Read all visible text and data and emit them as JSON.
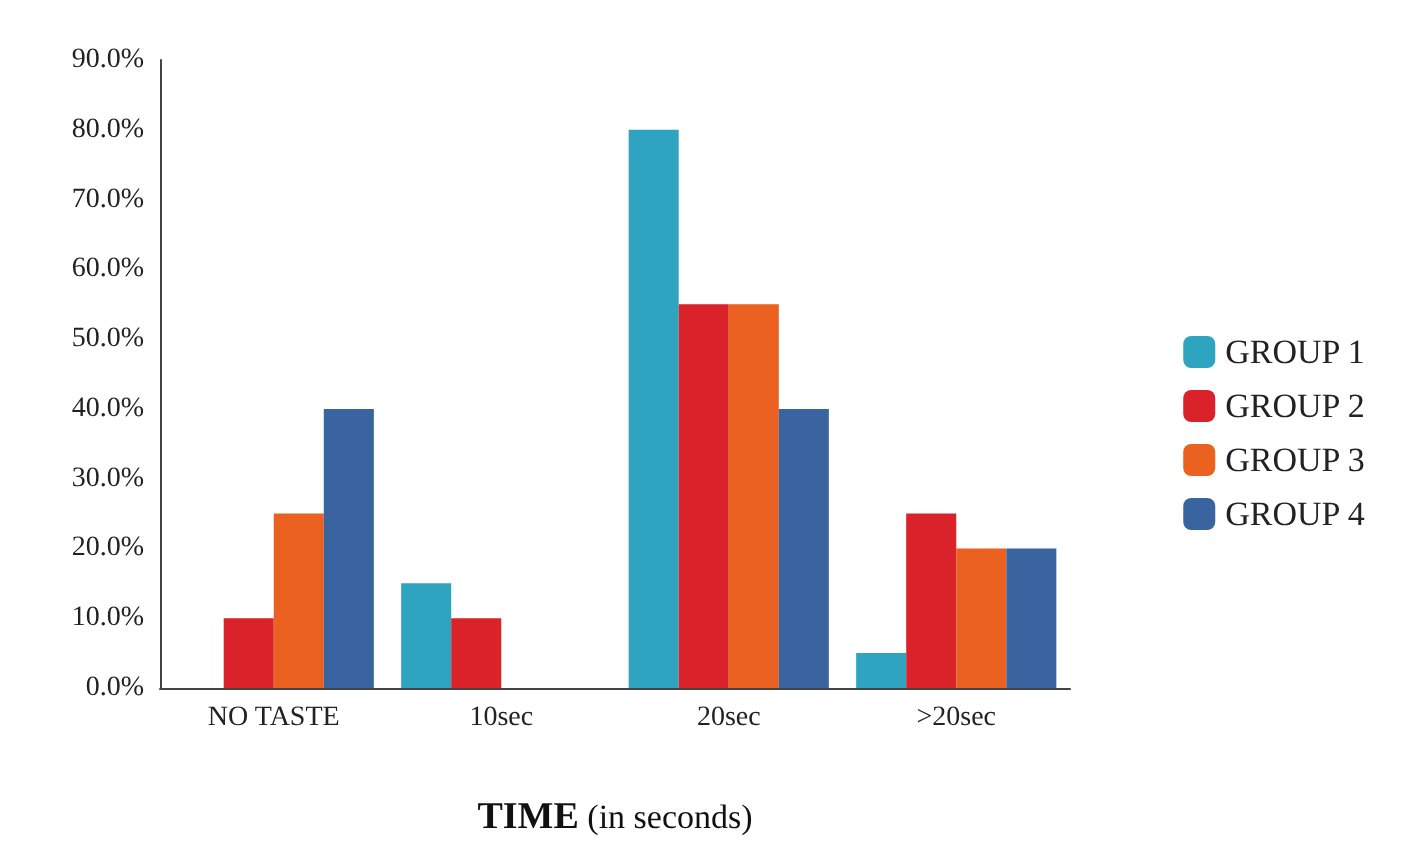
{
  "chart_data": {
    "type": "bar",
    "xlabel": "TIME (in seconds)",
    "categories": [
      "NO TASTE",
      "10sec",
      "20sec",
      ">20sec"
    ],
    "series": [
      {
        "name": "GROUP 1",
        "color": "#2ea4c1",
        "values": [
          0,
          15,
          80,
          5
        ]
      },
      {
        "name": "GROUP 2",
        "color": "#d9222a",
        "values": [
          10,
          10,
          55,
          25
        ]
      },
      {
        "name": "GROUP 3",
        "color": "#ea6120",
        "values": [
          25,
          0,
          55,
          20
        ]
      },
      {
        "name": "GROUP 4",
        "color": "#3a64a0",
        "values": [
          40,
          0,
          40,
          20
        ]
      }
    ],
    "ylim": [
      0,
      90
    ],
    "yticks": [
      {
        "value": 0,
        "label": "0.0%"
      },
      {
        "value": 10,
        "label": "10.0%"
      },
      {
        "value": 20,
        "label": "20.0%"
      },
      {
        "value": 30,
        "label": "30.0%"
      },
      {
        "value": 40,
        "label": "40.0%"
      },
      {
        "value": 50,
        "label": "50.0%"
      },
      {
        "value": 60,
        "label": "60.0%"
      },
      {
        "value": 70,
        "label": "70.0%"
      },
      {
        "value": 80,
        "label": "80.0%"
      },
      {
        "value": 90,
        "label": "90.0%"
      }
    ],
    "grid": false,
    "legend": "right"
  }
}
